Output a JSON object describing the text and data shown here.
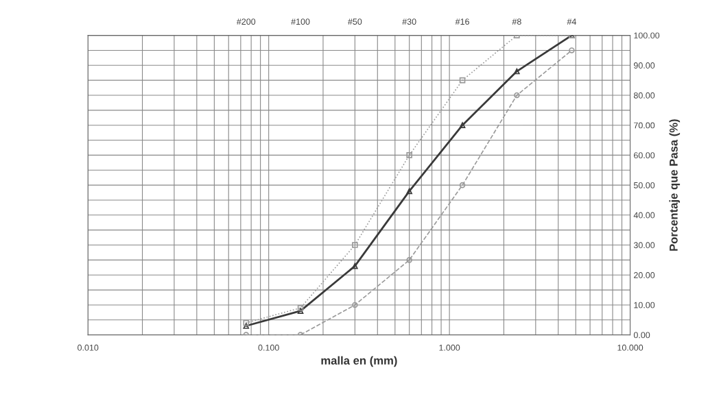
{
  "chart_data": {
    "type": "line",
    "xlabel": "malla en (mm)",
    "ylabel": "Porcentaje que Pasa (%)",
    "x": [
      0.075,
      0.15,
      0.3,
      0.6,
      1.18,
      2.36,
      4.75
    ],
    "series": [
      {
        "color": "#9a9a9a",
        "marker": "square",
        "line_style": "dotted",
        "values": [
          4,
          9,
          30,
          60,
          85,
          100,
          100
        ]
      },
      {
        "color": "#9a9a9a",
        "marker": "circle",
        "line_style": "dashed",
        "values": [
          0,
          0,
          10,
          25,
          50,
          80,
          95
        ]
      },
      {
        "color": "#3a3a3a",
        "marker": "triangle",
        "line_style": "solid",
        "values": [
          3,
          8,
          23,
          48,
          70,
          88,
          100
        ]
      }
    ],
    "log": "x",
    "xlim": [
      0.01,
      10
    ],
    "xticks": [
      {
        "value": 0.01,
        "label": "0.010"
      },
      {
        "value": 0.1,
        "label": "0.100"
      },
      {
        "value": 1,
        "label": "1.000"
      },
      {
        "value": 10,
        "label": "10.000"
      }
    ],
    "annotations": [
      "#200",
      "#100",
      "#50",
      "#30",
      "#16",
      "#8",
      "#4"
    ],
    "ylim": [
      0,
      100
    ],
    "yticks": [
      {
        "value": 0,
        "label": "0.00"
      },
      {
        "value": 10,
        "label": "10.00"
      },
      {
        "value": 20,
        "label": "20.00"
      },
      {
        "value": 30,
        "label": "30.00"
      },
      {
        "value": 40,
        "label": "40.00"
      },
      {
        "value": 50,
        "label": "50.00"
      },
      {
        "value": 60,
        "label": "60.00"
      },
      {
        "value": 70,
        "label": "70.00"
      },
      {
        "value": 80,
        "label": "80.00"
      },
      {
        "value": 90,
        "label": "90.00"
      },
      {
        "value": 100,
        "label": "100.00"
      }
    ],
    "grid": true
  }
}
